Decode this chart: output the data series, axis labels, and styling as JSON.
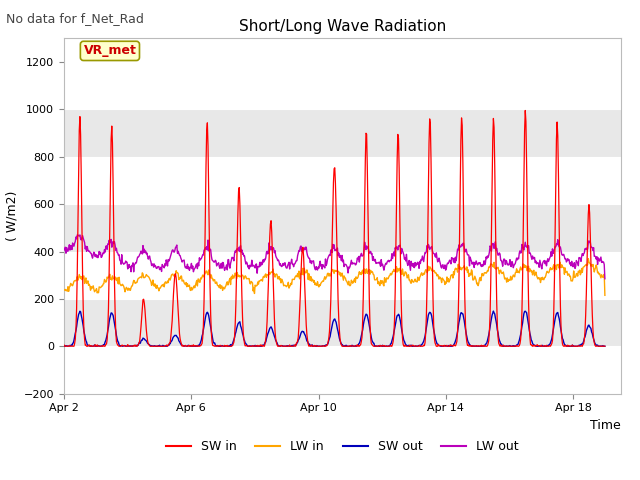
{
  "title": "Short/Long Wave Radiation",
  "subtitle": "No data for f_Net_Rad",
  "ylabel": "( W/m2)",
  "xlabel": "Time",
  "annotation": "VR_met",
  "ylim": [
    -200,
    1300
  ],
  "yticks": [
    -200,
    0,
    200,
    400,
    600,
    800,
    1000,
    1200
  ],
  "xtick_labels": [
    "Apr 2",
    "Apr 6",
    "Apr 10",
    "Apr 14",
    "Apr 18"
  ],
  "xtick_positions": [
    0,
    4,
    8,
    12,
    16
  ],
  "xlim": [
    0,
    17.5
  ],
  "n_days": 17,
  "colors": {
    "SW_in": "#ff0000",
    "LW_in": "#ffa500",
    "SW_out": "#0000bb",
    "LW_out": "#bb00bb"
  },
  "legend_labels": [
    "SW in",
    "LW in",
    "SW out",
    "LW out"
  ],
  "fig_bg_color": "#ffffff",
  "plot_bg_color": "#ffffff",
  "band_color": "#e8e8e8",
  "grid_color": "#d8d8d8",
  "title_fontsize": 11,
  "label_fontsize": 9,
  "tick_fontsize": 8,
  "legend_fontsize": 9
}
